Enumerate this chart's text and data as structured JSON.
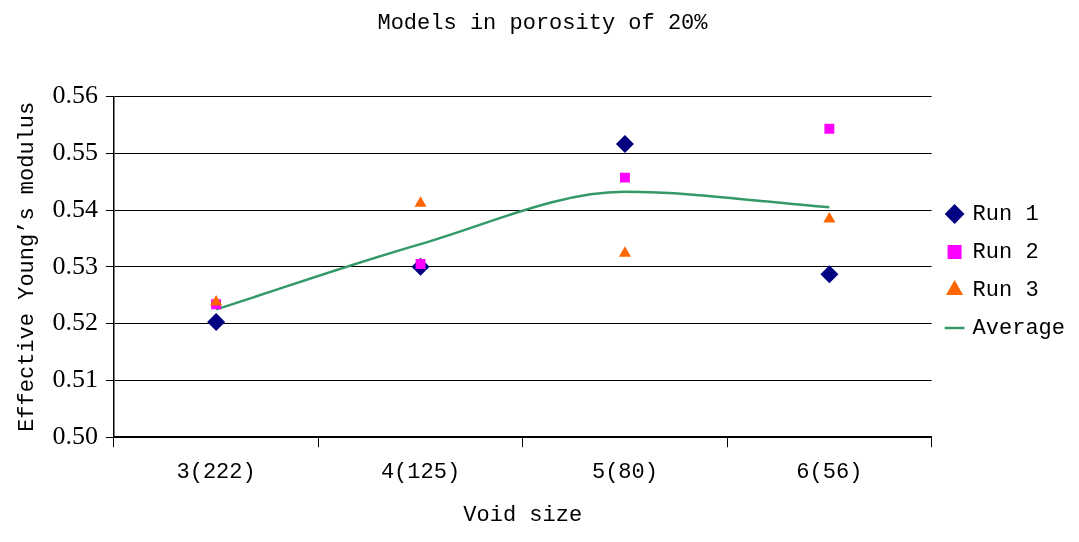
{
  "chart_data": {
    "type": "scatter",
    "title": "Models in porosity of 20%",
    "xlabel": "Void size",
    "ylabel": "Effective Young’s modulus",
    "categories": [
      "3(222)",
      "4(125)",
      "5(80)",
      "6(56)"
    ],
    "series": [
      {
        "name": "Run 1",
        "color": "#000080",
        "marker": "diamond",
        "values": [
          0.5203,
          0.53,
          0.5516,
          0.5287
        ]
      },
      {
        "name": "Run 2",
        "color": "#ff00ff",
        "marker": "square",
        "values": [
          0.5234,
          0.5305,
          0.5457,
          0.5543
        ]
      },
      {
        "name": "Run 3",
        "color": "#ff6600",
        "marker": "triangle",
        "values": [
          0.5238,
          0.5412,
          0.5324,
          0.5384
        ]
      },
      {
        "name": "Average",
        "type": "line",
        "color": "#339966",
        "marker": "none",
        "values": [
          0.5225,
          0.534,
          0.5432,
          0.5405
        ]
      }
    ],
    "ylim": [
      0.5,
      0.56
    ],
    "yticks": [
      {
        "value": 0.5,
        "label": "0.50"
      },
      0.51,
      0.52,
      0.53,
      0.54,
      0.55,
      0.56
    ],
    "grid": "y",
    "legend": "right"
  }
}
